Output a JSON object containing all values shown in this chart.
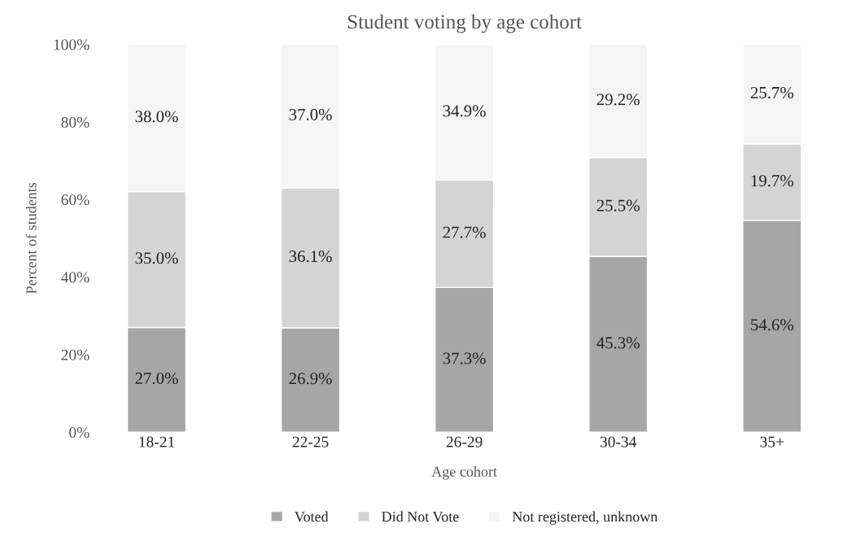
{
  "chart_data": {
    "type": "bar",
    "title": "Student voting by age cohort",
    "xlabel": "Age cohort",
    "ylabel": "Percent of students",
    "categories": [
      "18-21",
      "22-25",
      "26-29",
      "30-34",
      "35+"
    ],
    "stacked": true,
    "series": [
      {
        "name": "Voted",
        "color": "#a6a6a6",
        "values": [
          27.0,
          26.9,
          37.3,
          45.3,
          54.6
        ],
        "value_labels": [
          "27.0%",
          "26.9%",
          "37.3%",
          "45.3%",
          "54.6%"
        ]
      },
      {
        "name": "Did Not Vote",
        "color": "#d4d4d4",
        "values": [
          35.0,
          36.1,
          27.7,
          25.5,
          19.7
        ],
        "value_labels": [
          "35.0%",
          "36.1%",
          "27.7%",
          "25.5%",
          "19.7%"
        ]
      },
      {
        "name": "Not registered, unknown",
        "color": "#f5f5f5",
        "values": [
          38.0,
          37.0,
          34.9,
          29.2,
          25.7
        ],
        "value_labels": [
          "38.0%",
          "37.0%",
          "34.9%",
          "29.2%",
          "25.7%"
        ]
      }
    ],
    "ylim": [
      0,
      100
    ],
    "yticks": [
      {
        "value": 0,
        "label": "0%"
      },
      {
        "value": 20,
        "label": "20%"
      },
      {
        "value": 40,
        "label": "40%"
      },
      {
        "value": 60,
        "label": "60%"
      },
      {
        "value": 80,
        "label": "80%"
      },
      {
        "value": 100,
        "label": "100%"
      }
    ],
    "grid": false,
    "legend": "bottom"
  }
}
